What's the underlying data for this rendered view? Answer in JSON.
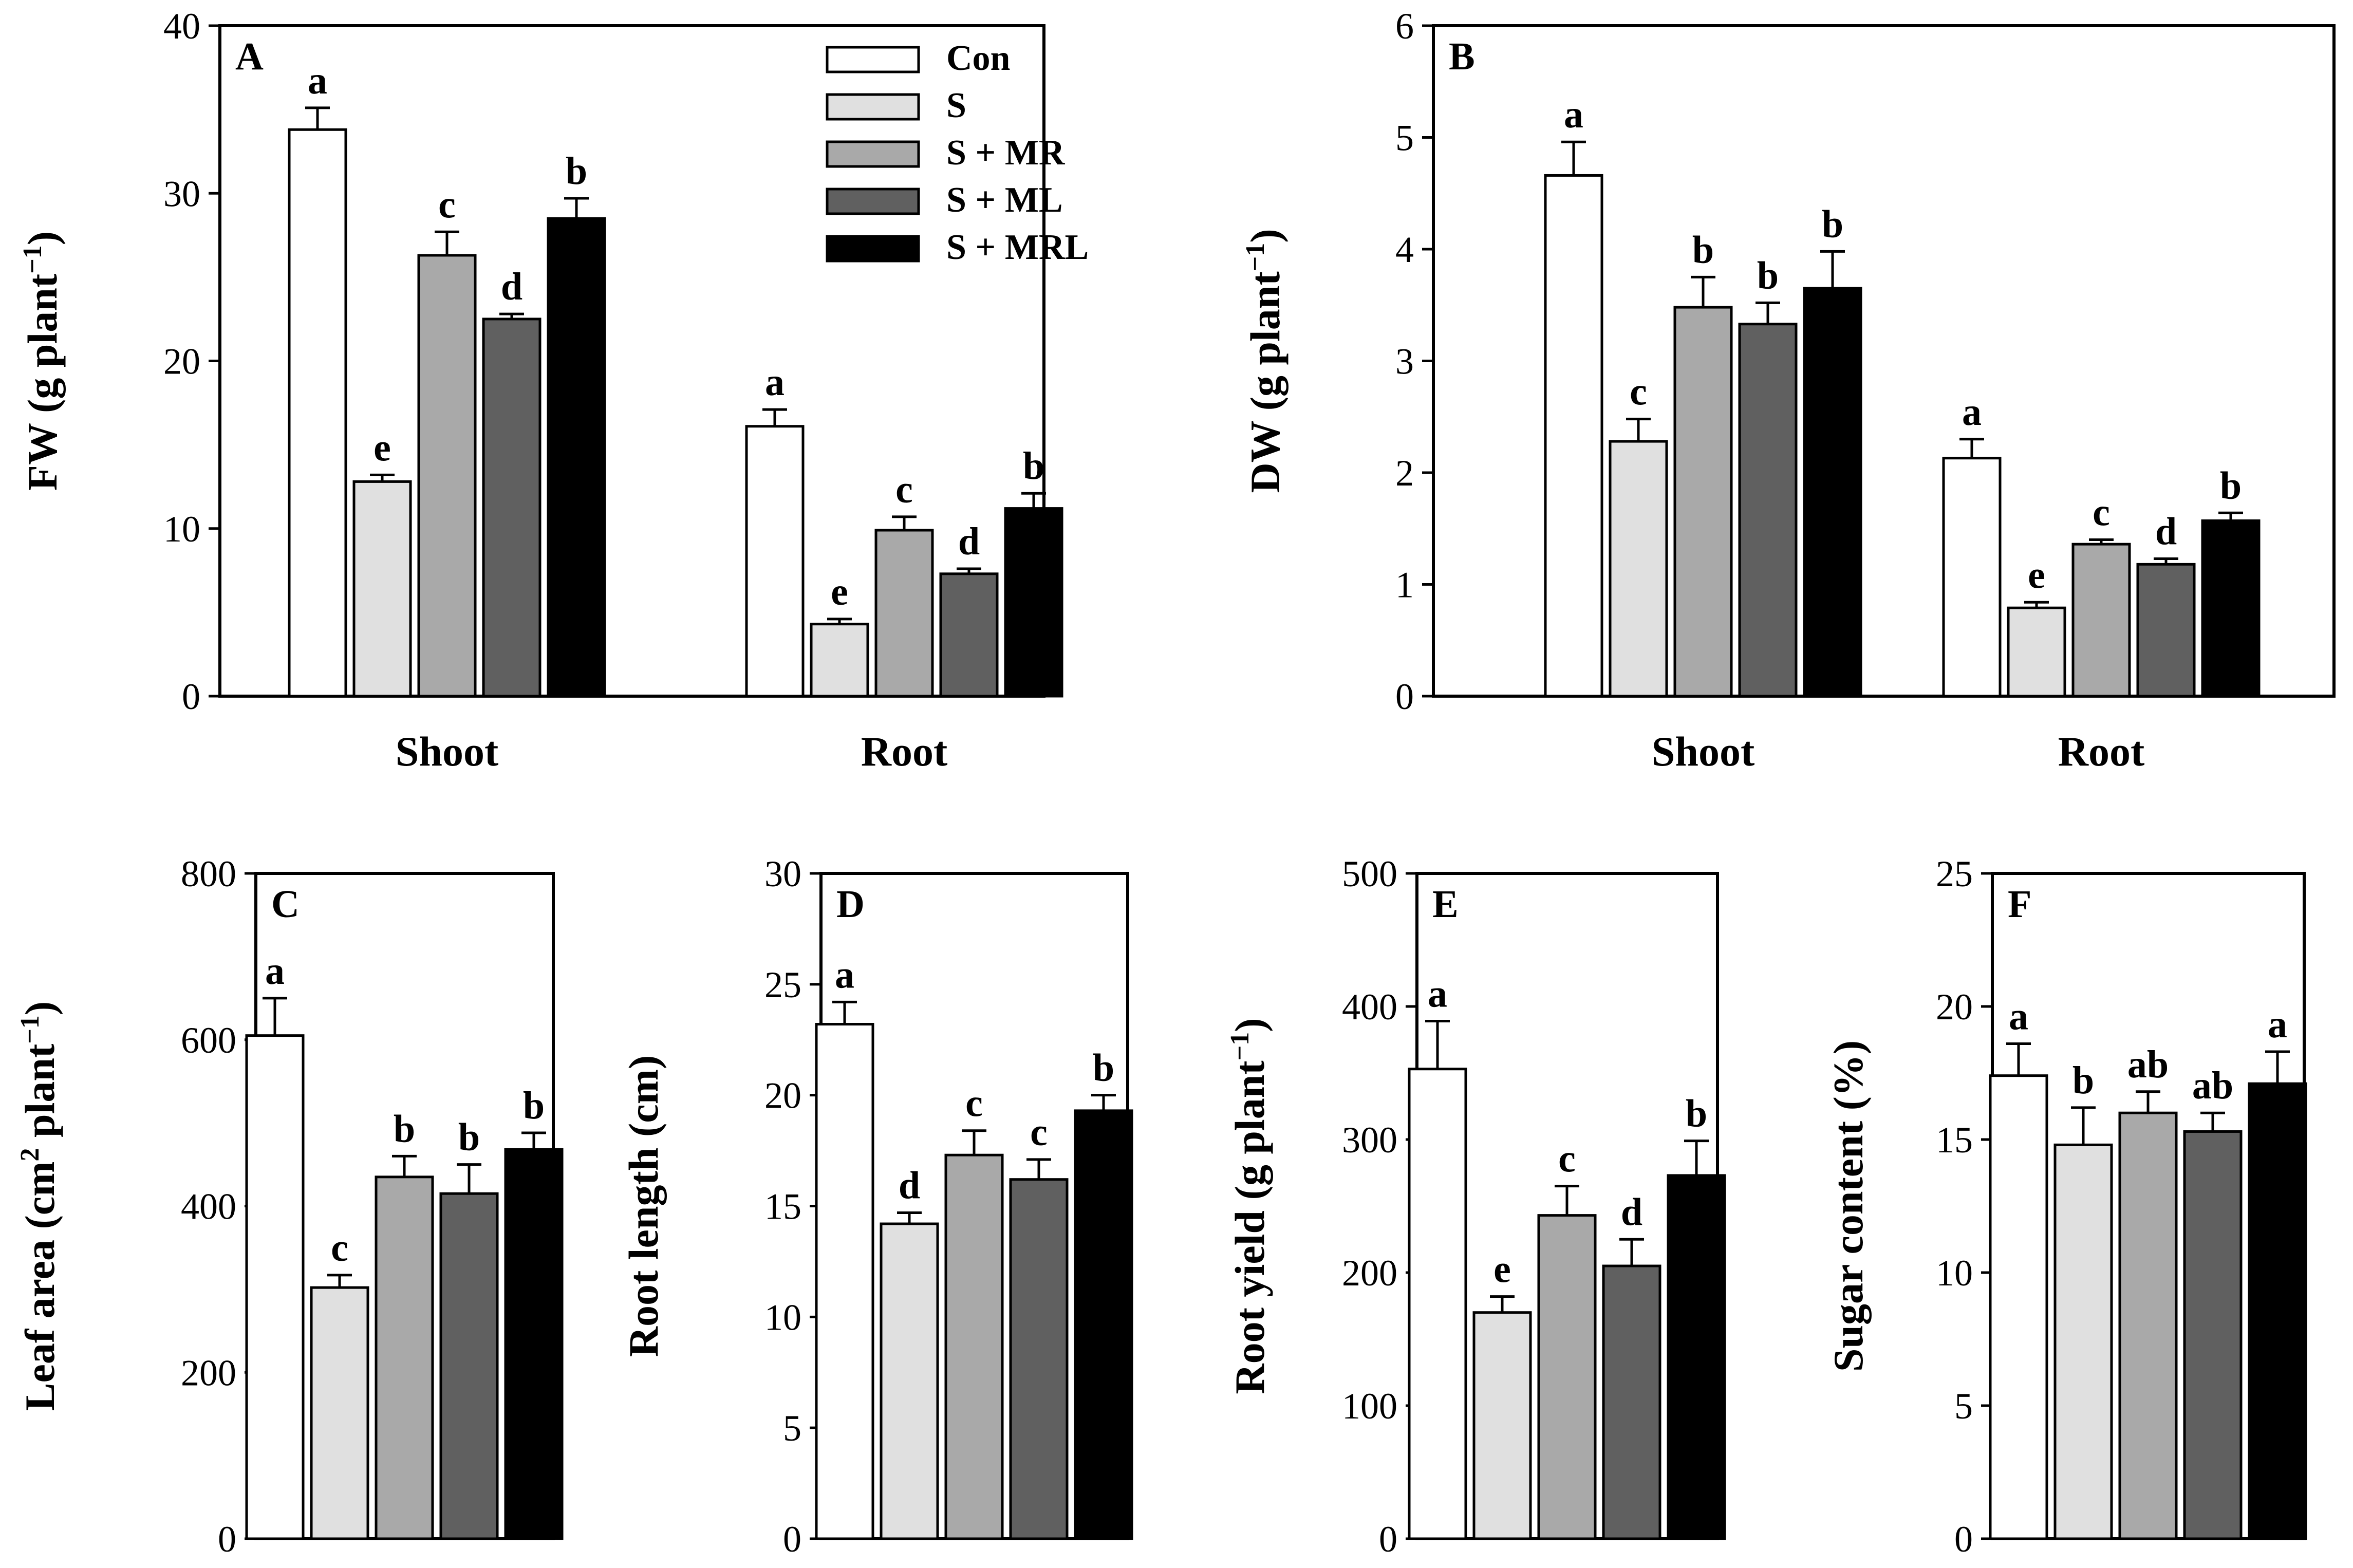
{
  "legend": [
    {
      "name": "Con",
      "color": "#ffffff"
    },
    {
      "name": "S",
      "color": "#e0e0e0"
    },
    {
      "name": "S + MR",
      "color": "#a9a9a9"
    },
    {
      "name": "S + ML",
      "color": "#606060"
    },
    {
      "name": "S + MRL",
      "color": "#000000"
    }
  ],
  "chart_data": [
    {
      "type": "bar",
      "panel": "A",
      "ylabel": "FW (g plant",
      "ylabel_sup": "−1",
      "ylabel_end": ")",
      "ylim": [
        0,
        40
      ],
      "yticks": [
        0,
        10,
        20,
        30,
        40
      ],
      "categories": [
        "Shoot",
        "Root"
      ],
      "series": [
        {
          "name": "Con",
          "values": [
            33.8,
            16.1
          ],
          "errors": [
            1.3,
            1.0
          ],
          "letters": [
            "a",
            "a"
          ]
        },
        {
          "name": "S",
          "values": [
            12.8,
            4.3
          ],
          "errors": [
            0.4,
            0.3
          ],
          "letters": [
            "e",
            "e"
          ]
        },
        {
          "name": "S + MR",
          "values": [
            26.3,
            9.9
          ],
          "errors": [
            1.4,
            0.8
          ],
          "letters": [
            "c",
            "c"
          ]
        },
        {
          "name": "S + ML",
          "values": [
            22.5,
            7.3
          ],
          "errors": [
            0.3,
            0.3
          ],
          "letters": [
            "d",
            "d"
          ]
        },
        {
          "name": "S + MRL",
          "values": [
            28.5,
            11.2
          ],
          "errors": [
            1.2,
            0.9
          ],
          "letters": [
            "b",
            "b"
          ]
        }
      ]
    },
    {
      "type": "bar",
      "panel": "B",
      "ylabel": "DW (g plant",
      "ylabel_sup": "−1",
      "ylabel_end": ")",
      "ylim": [
        0,
        6
      ],
      "yticks": [
        0,
        1,
        2,
        3,
        4,
        5,
        6
      ],
      "categories": [
        "Shoot",
        "Root"
      ],
      "series": [
        {
          "name": "Con",
          "values": [
            4.66,
            2.13
          ],
          "errors": [
            0.3,
            0.17
          ],
          "letters": [
            "a",
            "a"
          ]
        },
        {
          "name": "S",
          "values": [
            2.28,
            0.79
          ],
          "errors": [
            0.2,
            0.05
          ],
          "letters": [
            "c",
            "e"
          ]
        },
        {
          "name": "S + MR",
          "values": [
            3.48,
            1.36
          ],
          "errors": [
            0.27,
            0.04
          ],
          "letters": [
            "b",
            "c"
          ]
        },
        {
          "name": "S + ML",
          "values": [
            3.33,
            1.18
          ],
          "errors": [
            0.19,
            0.05
          ],
          "letters": [
            "b",
            "d"
          ]
        },
        {
          "name": "S + MRL",
          "values": [
            3.65,
            1.57
          ],
          "errors": [
            0.33,
            0.07
          ],
          "letters": [
            "b",
            "b"
          ]
        }
      ]
    },
    {
      "type": "bar",
      "panel": "C",
      "ylabel": "Leaf area (cm",
      "ylabel_sup2": "2",
      "ylabel_mid": " plant",
      "ylabel_sup": "−1",
      "ylabel_end": ")",
      "ylim": [
        0,
        800
      ],
      "yticks": [
        0,
        200,
        400,
        600,
        800
      ],
      "categories": [
        ""
      ],
      "series": [
        {
          "name": "Con",
          "values": [
            605
          ],
          "errors": [
            45
          ],
          "letters": [
            "a"
          ]
        },
        {
          "name": "S",
          "values": [
            302
          ],
          "errors": [
            15
          ],
          "letters": [
            "c"
          ]
        },
        {
          "name": "S + MR",
          "values": [
            435
          ],
          "errors": [
            25
          ],
          "letters": [
            "b"
          ]
        },
        {
          "name": "S + ML",
          "values": [
            415
          ],
          "errors": [
            35
          ],
          "letters": [
            "b"
          ]
        },
        {
          "name": "S + MRL",
          "values": [
            468
          ],
          "errors": [
            20
          ],
          "letters": [
            "b"
          ]
        }
      ]
    },
    {
      "type": "bar",
      "panel": "D",
      "ylabel": "Root length (cm)",
      "ylim": [
        0,
        30
      ],
      "yticks": [
        0,
        5,
        10,
        15,
        20,
        25,
        30
      ],
      "categories": [
        ""
      ],
      "series": [
        {
          "name": "Con",
          "values": [
            23.2
          ],
          "errors": [
            1.0
          ],
          "letters": [
            "a"
          ]
        },
        {
          "name": "S",
          "values": [
            14.2
          ],
          "errors": [
            0.5
          ],
          "letters": [
            "d"
          ]
        },
        {
          "name": "S + MR",
          "values": [
            17.3
          ],
          "errors": [
            1.1
          ],
          "letters": [
            "c"
          ]
        },
        {
          "name": "S + ML",
          "values": [
            16.2
          ],
          "errors": [
            0.9
          ],
          "letters": [
            "c"
          ]
        },
        {
          "name": "S + MRL",
          "values": [
            19.3
          ],
          "errors": [
            0.7
          ],
          "letters": [
            "b"
          ]
        }
      ]
    },
    {
      "type": "bar",
      "panel": "E",
      "ylabel": "Root yield (g plant",
      "ylabel_sup": "−1",
      "ylabel_end": ")",
      "ylim": [
        0,
        500
      ],
      "yticks": [
        0,
        100,
        200,
        300,
        400,
        500
      ],
      "categories": [
        ""
      ],
      "series": [
        {
          "name": "Con",
          "values": [
            353
          ],
          "errors": [
            36
          ],
          "letters": [
            "a"
          ]
        },
        {
          "name": "S",
          "values": [
            170
          ],
          "errors": [
            12
          ],
          "letters": [
            "e"
          ]
        },
        {
          "name": "S + MR",
          "values": [
            243
          ],
          "errors": [
            22
          ],
          "letters": [
            "c"
          ]
        },
        {
          "name": "S + ML",
          "values": [
            205
          ],
          "errors": [
            20
          ],
          "letters": [
            "d"
          ]
        },
        {
          "name": "S + MRL",
          "values": [
            273
          ],
          "errors": [
            26
          ],
          "letters": [
            "b"
          ]
        }
      ]
    },
    {
      "type": "bar",
      "panel": "F",
      "ylabel": "Sugar content (%)",
      "ylim": [
        0,
        25
      ],
      "yticks": [
        0,
        5,
        10,
        15,
        20,
        25
      ],
      "categories": [
        ""
      ],
      "series": [
        {
          "name": "Con",
          "values": [
            17.4
          ],
          "errors": [
            1.2
          ],
          "letters": [
            "a"
          ]
        },
        {
          "name": "S",
          "values": [
            14.8
          ],
          "errors": [
            1.4
          ],
          "letters": [
            "b"
          ]
        },
        {
          "name": "S + MR",
          "values": [
            16.0
          ],
          "errors": [
            0.8
          ],
          "letters": [
            "ab"
          ]
        },
        {
          "name": "S + ML",
          "values": [
            15.3
          ],
          "errors": [
            0.7
          ],
          "letters": [
            "ab"
          ]
        },
        {
          "name": "S + MRL",
          "values": [
            17.1
          ],
          "errors": [
            1.2
          ],
          "letters": [
            "a"
          ]
        }
      ]
    }
  ]
}
